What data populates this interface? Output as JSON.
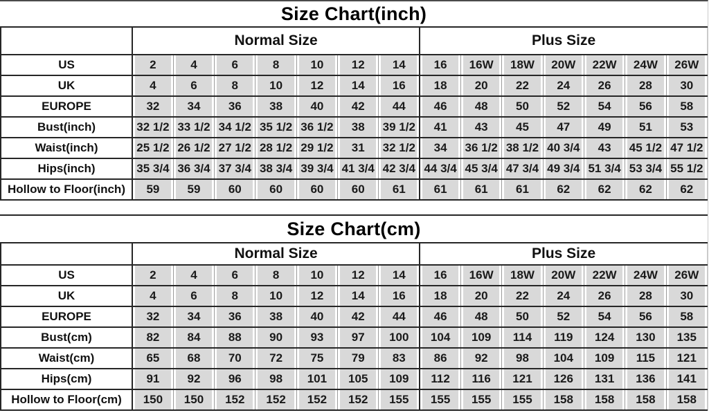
{
  "colors": {
    "cell_fill": "#d9d9d9",
    "row_line": "#262626",
    "column_grid_line": "#9a9a9a",
    "text_color": "#111111",
    "background": "#ffffff"
  },
  "chart_data": [
    {
      "type": "table",
      "title": "Size Chart(inch)",
      "column_groups": [
        {
          "label": "Normal Size",
          "span": 7
        },
        {
          "label": "Plus Size",
          "span": 7
        }
      ],
      "rows": [
        {
          "label": "US",
          "values": [
            "2",
            "4",
            "6",
            "8",
            "10",
            "12",
            "14",
            "16",
            "16W",
            "18W",
            "20W",
            "22W",
            "24W",
            "26W"
          ]
        },
        {
          "label": "UK",
          "values": [
            "4",
            "6",
            "8",
            "10",
            "12",
            "14",
            "16",
            "18",
            "20",
            "22",
            "24",
            "26",
            "28",
            "30"
          ]
        },
        {
          "label": "EUROPE",
          "values": [
            "32",
            "34",
            "36",
            "38",
            "40",
            "42",
            "44",
            "46",
            "48",
            "50",
            "52",
            "54",
            "56",
            "58"
          ]
        },
        {
          "label": "Bust(inch)",
          "values": [
            "32 1/2",
            "33 1/2",
            "34 1/2",
            "35 1/2",
            "36 1/2",
            "38",
            "39 1/2",
            "41",
            "43",
            "45",
            "47",
            "49",
            "51",
            "53"
          ]
        },
        {
          "label": "Waist(inch)",
          "values": [
            "25 1/2",
            "26 1/2",
            "27 1/2",
            "28 1/2",
            "29 1/2",
            "31",
            "32 1/2",
            "34",
            "36 1/2",
            "38 1/2",
            "40 3/4",
            "43",
            "45 1/2",
            "47 1/2"
          ]
        },
        {
          "label": "Hips(inch)",
          "values": [
            "35 3/4",
            "36 3/4",
            "37 3/4",
            "38 3/4",
            "39 3/4",
            "41 3/4",
            "42 3/4",
            "44 3/4",
            "45 3/4",
            "47 3/4",
            "49 3/4",
            "51 3/4",
            "53 3/4",
            "55 1/2"
          ]
        },
        {
          "label": "Hollow to Floor(inch)",
          "values": [
            "59",
            "59",
            "60",
            "60",
            "60",
            "60",
            "61",
            "61",
            "61",
            "61",
            "62",
            "62",
            "62",
            "62"
          ]
        }
      ]
    },
    {
      "type": "table",
      "title": "Size Chart(cm)",
      "column_groups": [
        {
          "label": "Normal Size",
          "span": 7
        },
        {
          "label": "Plus Size",
          "span": 7
        }
      ],
      "rows": [
        {
          "label": "US",
          "values": [
            "2",
            "4",
            "6",
            "8",
            "10",
            "12",
            "14",
            "16",
            "16W",
            "18W",
            "20W",
            "22W",
            "24W",
            "26W"
          ]
        },
        {
          "label": "UK",
          "values": [
            "4",
            "6",
            "8",
            "10",
            "12",
            "14",
            "16",
            "18",
            "20",
            "22",
            "24",
            "26",
            "28",
            "30"
          ]
        },
        {
          "label": "EUROPE",
          "values": [
            "32",
            "34",
            "36",
            "38",
            "40",
            "42",
            "44",
            "46",
            "48",
            "50",
            "52",
            "54",
            "56",
            "58"
          ]
        },
        {
          "label": "Bust(cm)",
          "values": [
            "82",
            "84",
            "88",
            "90",
            "93",
            "97",
            "100",
            "104",
            "109",
            "114",
            "119",
            "124",
            "130",
            "135"
          ]
        },
        {
          "label": "Waist(cm)",
          "values": [
            "65",
            "68",
            "70",
            "72",
            "75",
            "79",
            "83",
            "86",
            "92",
            "98",
            "104",
            "109",
            "115",
            "121"
          ]
        },
        {
          "label": "Hips(cm)",
          "values": [
            "91",
            "92",
            "96",
            "98",
            "101",
            "105",
            "109",
            "112",
            "116",
            "121",
            "126",
            "131",
            "136",
            "141"
          ]
        },
        {
          "label": "Hollow to Floor(cm)",
          "values": [
            "150",
            "150",
            "152",
            "152",
            "152",
            "152",
            "155",
            "155",
            "155",
            "155",
            "158",
            "158",
            "158",
            "158"
          ]
        }
      ]
    }
  ]
}
